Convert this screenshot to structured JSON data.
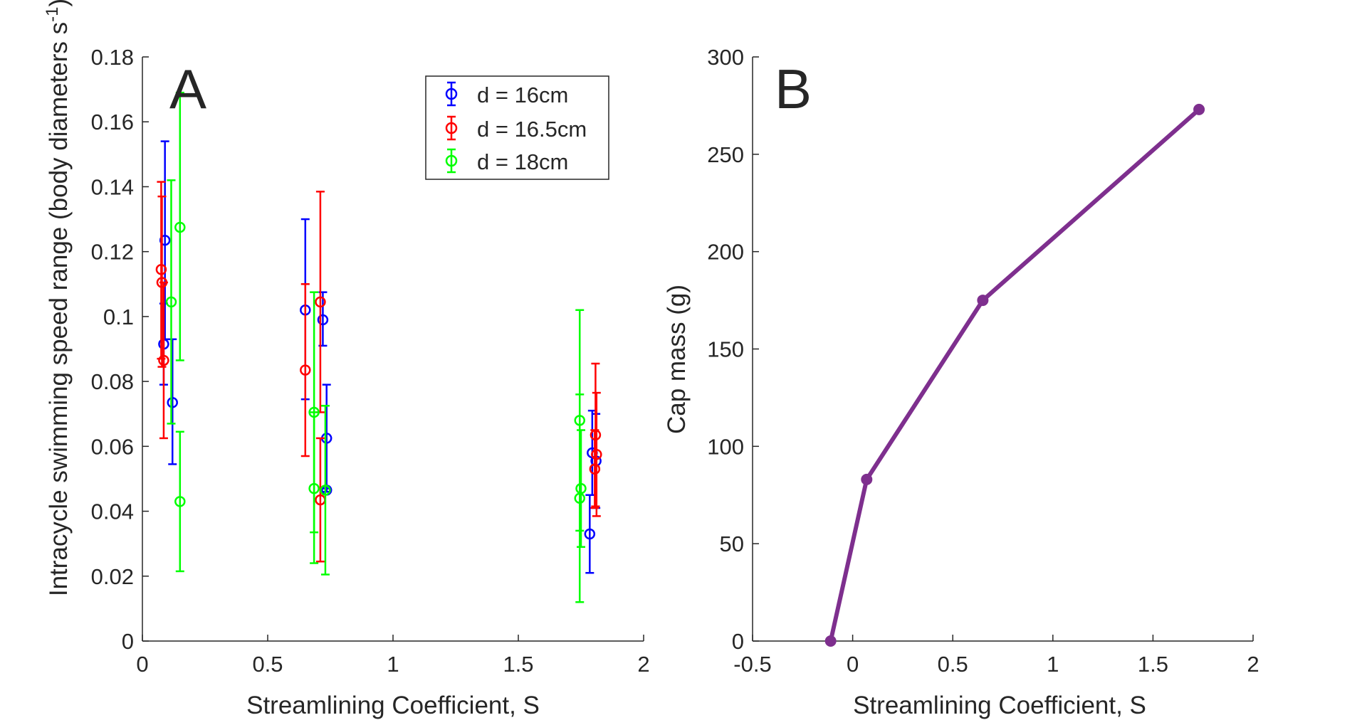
{
  "chart_data": [
    {
      "type": "scatter",
      "panel_label": "A",
      "xlabel": "Streamlining Coefficient, S",
      "ylabel": "Intracycle swimming speed range (body diameters s",
      "ylabel_exponent": "-1",
      "ylabel_suffix": ")",
      "xlim": [
        0,
        2
      ],
      "ylim": [
        0,
        0.18
      ],
      "xticks": [
        0,
        0.5,
        1,
        1.5,
        2
      ],
      "xtick_labels": [
        "0",
        "0.5",
        "1",
        "1.5",
        "2"
      ],
      "yticks": [
        0,
        0.02,
        0.04,
        0.06,
        0.08,
        0.1,
        0.12,
        0.14,
        0.16,
        0.18
      ],
      "ytick_labels": [
        "0",
        "0.02",
        "0.04",
        "0.06",
        "0.08",
        "0.1",
        "0.12",
        "0.14",
        "0.16",
        "0.18"
      ],
      "legend": {
        "placement": "top-right"
      },
      "series": [
        {
          "name": "d = 16cm",
          "color": "#0000ff",
          "points": [
            {
              "x": 0.085,
              "y": 0.0915,
              "lo": 0.079,
              "hi": 0.104
            },
            {
              "x": 0.09,
              "y": 0.1235,
              "lo": 0.093,
              "hi": 0.154
            },
            {
              "x": 0.12,
              "y": 0.0735,
              "lo": 0.0545,
              "hi": 0.093
            },
            {
              "x": 0.65,
              "y": 0.102,
              "lo": 0.0745,
              "hi": 0.13
            },
            {
              "x": 0.72,
              "y": 0.099,
              "lo": 0.091,
              "hi": 0.1075
            },
            {
              "x": 0.735,
              "y": 0.0625,
              "lo": 0.046,
              "hi": 0.079
            },
            {
              "x": 0.735,
              "y": 0.0465,
              "lo": 0.046,
              "hi": 0.047
            },
            {
              "x": 1.785,
              "y": 0.033,
              "lo": 0.021,
              "hi": 0.045
            },
            {
              "x": 1.795,
              "y": 0.058,
              "lo": 0.045,
              "hi": 0.071
            },
            {
              "x": 1.81,
              "y": 0.0555,
              "lo": 0.041,
              "hi": 0.07
            }
          ]
        },
        {
          "name": "d = 16.5cm",
          "color": "#ff0000",
          "points": [
            {
              "x": 0.075,
              "y": 0.1145,
              "lo": 0.087,
              "hi": 0.1415
            },
            {
              "x": 0.078,
              "y": 0.1105,
              "lo": 0.0845,
              "hi": 0.137
            },
            {
              "x": 0.085,
              "y": 0.0865,
              "lo": 0.0625,
              "hi": 0.1105
            },
            {
              "x": 0.65,
              "y": 0.0835,
              "lo": 0.057,
              "hi": 0.11
            },
            {
              "x": 0.71,
              "y": 0.1045,
              "lo": 0.0705,
              "hi": 0.1385
            },
            {
              "x": 0.71,
              "y": 0.0435,
              "lo": 0.0245,
              "hi": 0.0625
            },
            {
              "x": 1.808,
              "y": 0.0635,
              "lo": 0.0415,
              "hi": 0.0855
            },
            {
              "x": 1.812,
              "y": 0.0575,
              "lo": 0.0385,
              "hi": 0.0765
            },
            {
              "x": 1.805,
              "y": 0.053,
              "lo": 0.041,
              "hi": 0.065
            }
          ]
        },
        {
          "name": "d = 18cm",
          "color": "#00ff00",
          "points": [
            {
              "x": 0.115,
              "y": 0.1045,
              "lo": 0.067,
              "hi": 0.142
            },
            {
              "x": 0.15,
              "y": 0.1275,
              "lo": 0.0865,
              "hi": 0.169
            },
            {
              "x": 0.15,
              "y": 0.043,
              "lo": 0.0215,
              "hi": 0.0645
            },
            {
              "x": 0.685,
              "y": 0.0705,
              "lo": 0.0335,
              "hi": 0.1075
            },
            {
              "x": 0.685,
              "y": 0.047,
              "lo": 0.024,
              "hi": 0.0705
            },
            {
              "x": 0.73,
              "y": 0.0465,
              "lo": 0.0205,
              "hi": 0.0725
            },
            {
              "x": 1.745,
              "y": 0.068,
              "lo": 0.034,
              "hi": 0.102
            },
            {
              "x": 1.75,
              "y": 0.047,
              "lo": 0.029,
              "hi": 0.065
            },
            {
              "x": 1.745,
              "y": 0.044,
              "lo": 0.012,
              "hi": 0.076
            }
          ]
        }
      ]
    },
    {
      "type": "line",
      "panel_label": "B",
      "xlabel": "Streamlining Coefficient, S",
      "ylabel": "Cap mass (g)",
      "xlim": [
        -0.5,
        2
      ],
      "ylim": [
        0,
        300
      ],
      "xticks": [
        -0.5,
        0,
        0.5,
        1,
        1.5,
        2
      ],
      "xtick_labels": [
        "-0.5",
        "0",
        "0.5",
        "1",
        "1.5",
        "2"
      ],
      "yticks": [
        0,
        50,
        100,
        150,
        200,
        250,
        300
      ],
      "ytick_labels": [
        "0",
        "50",
        "100",
        "150",
        "200",
        "250",
        "300"
      ],
      "series": [
        {
          "name": "Cap mass",
          "color": "#7e2f8e",
          "x": [
            -0.11,
            0.07,
            0.65,
            1.73
          ],
          "y": [
            0,
            83,
            175,
            273
          ]
        }
      ]
    }
  ]
}
